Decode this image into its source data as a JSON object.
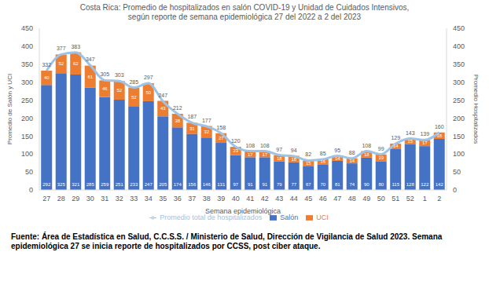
{
  "chart_data": {
    "type": "bar",
    "title": "Costa Rica: Promedio de hospitalizados en salón COVID-19 y Unidad de Cuidados Intensivos, según reporte de semana epidemiológica 27 del 2022 a 2 del 2023",
    "x_label": "Semana epidemiológica",
    "y_label": "Promedio de Salón y UCI",
    "y2_label": "Promedio Hospitalizados",
    "note": "Fuente: Área de Estadística en Salud, C.C.S.S. / Ministerio de Salud, Dirección de Vigilancia de Salud 2023. Semana epidemiológica 27 se inicia reporte de hospitalizados por CCSS, post ciber ataque.",
    "categories": [
      27,
      28,
      29,
      30,
      31,
      32,
      33,
      34,
      35,
      36,
      37,
      38,
      39,
      40,
      41,
      42,
      43,
      44,
      45,
      46,
      47,
      48,
      49,
      50,
      51,
      52,
      1,
      2
    ],
    "series": [
      {
        "name": "Salón",
        "type": "bar",
        "color": "#4472c4",
        "values": [
          292,
          325,
          321,
          285,
          259,
          251,
          233,
          247,
          205,
          174,
          156,
          146,
          131,
          97,
          91,
          91,
          79,
          77,
          67,
          70,
          81,
          74,
          90,
          80,
          115,
          128,
          122,
          142
        ]
      },
      {
        "name": "UCI",
        "type": "bar",
        "color": "#ed7d31",
        "values": [
          40,
          52,
          62,
          61,
          46,
          52,
          52,
          50,
          43,
          38,
          31,
          32,
          27,
          23,
          17,
          17,
          18,
          18,
          15,
          16,
          14,
          14,
          18,
          19,
          14,
          15,
          17,
          18
        ]
      },
      {
        "name": "Promedio total de hospitalizados",
        "type": "line",
        "axis": "y2",
        "color": "#9dc3e6",
        "values": [
          332,
          377,
          383,
          347,
          305,
          303,
          285,
          297,
          247,
          212,
          187,
          177,
          158,
          120,
          108,
          108,
          97,
          94,
          82,
          85,
          95,
          88,
          108,
          99,
          129,
          143,
          139,
          160
        ]
      }
    ],
    "ylim": [
      0,
      450
    ],
    "yticks": [
      0,
      50,
      100,
      150,
      200,
      250,
      300,
      350,
      400,
      450
    ],
    "y2lim": [
      0,
      450
    ],
    "y2ticks": [
      0,
      50,
      100,
      150,
      200,
      250,
      300,
      350,
      400,
      450
    ],
    "stacked": true,
    "data_labels": true,
    "grid": false,
    "legend": "bottom"
  }
}
